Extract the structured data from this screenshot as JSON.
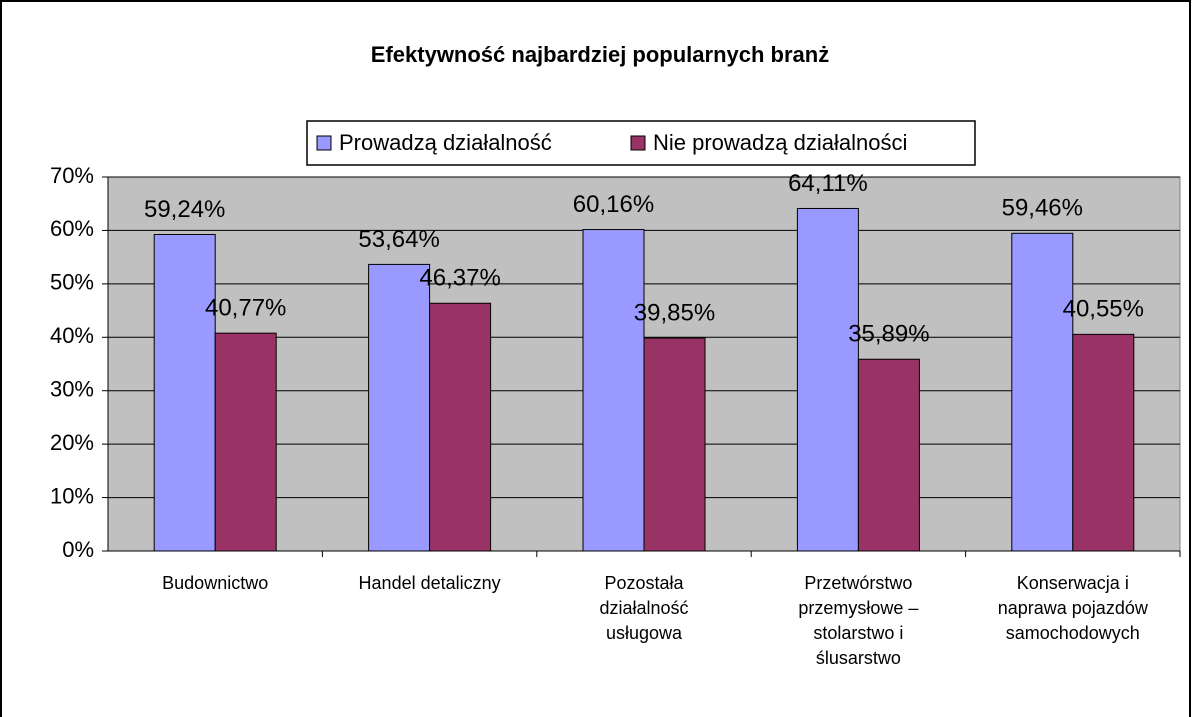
{
  "chart_data": {
    "type": "bar",
    "title": "Efektywność najbardziej popularnych branż",
    "categories": [
      "Budownictwo",
      "Handel detaliczny",
      "Pozostała działalność usługowa",
      "Przetwórstwo przemysłowe – stolarstwo i ślusarstwo",
      "Konserwacja i naprawa pojazdów samochodowych"
    ],
    "series": [
      {
        "name": "Prowadzą działalność",
        "color": "#9999ff",
        "values": [
          59.24,
          53.64,
          60.16,
          64.11,
          59.46
        ],
        "value_labels": [
          "59,24%",
          "53,64%",
          "60,16%",
          "64,11%",
          "59,46%"
        ]
      },
      {
        "name": "Nie prowadzą działalności",
        "color": "#993366",
        "values": [
          40.77,
          46.37,
          39.85,
          35.89,
          40.55
        ],
        "value_labels": [
          "40,77%",
          "46,37%",
          "39,85%",
          "35,89%",
          "40,55%"
        ]
      }
    ],
    "ylim": [
      0,
      70
    ],
    "yticks": [
      {
        "value": 0,
        "label": "0%"
      },
      {
        "value": 10,
        "label": "10%"
      },
      {
        "value": 20,
        "label": "20%"
      },
      {
        "value": 30,
        "label": "30%"
      },
      {
        "value": 40,
        "label": "40%"
      },
      {
        "value": 50,
        "label": "50%"
      },
      {
        "value": 60,
        "label": "60%"
      },
      {
        "value": 70,
        "label": "70%"
      }
    ],
    "grid": true,
    "legend": "top",
    "plot_background": "#c0c0c0"
  }
}
